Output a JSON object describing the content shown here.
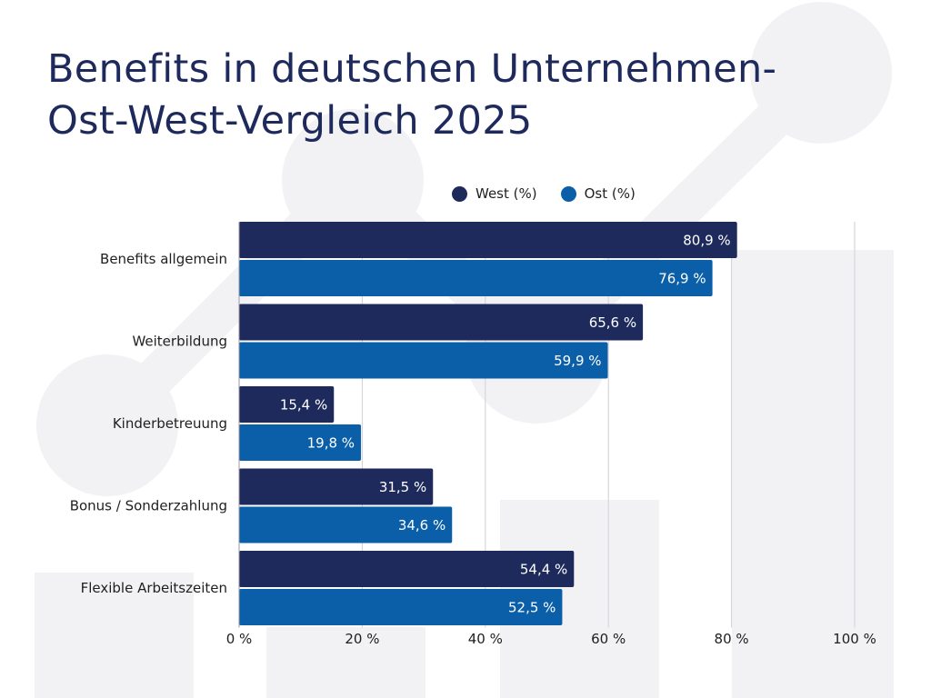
{
  "title_line1": "Benefits in deutschen Unternehmen-",
  "title_line2": "Ost-West-Vergleich 2025",
  "colors": {
    "west": "#1f2a5c",
    "ost": "#0a5fa8",
    "grid": "#cfcfd6",
    "background_shapes": "#f2f2f5"
  },
  "chart_data": {
    "type": "bar",
    "orientation": "horizontal",
    "categories": [
      "Benefits allgemein",
      "Weiterbildung",
      "Kinderbetreuung",
      "Bonus / Sonderzahlung",
      "Flexible Arbeitszeiten"
    ],
    "series": [
      {
        "name": "West (%)",
        "values": [
          80.9,
          65.6,
          15.4,
          31.5,
          54.4
        ],
        "labels": [
          "80,9 %",
          "65,6 %",
          "15,4 %",
          "31,5 %",
          "54,4 %"
        ]
      },
      {
        "name": "Ost (%)",
        "values": [
          76.9,
          59.9,
          19.8,
          34.6,
          52.5
        ],
        "labels": [
          "76,9 %",
          "59,9 %",
          "19,8 %",
          "34,6 %",
          "52,5 %"
        ]
      }
    ],
    "xlim": [
      0,
      100
    ],
    "xticks": [
      0,
      20,
      40,
      60,
      80,
      100
    ],
    "xtick_labels": [
      "0 %",
      "20 %",
      "40 %",
      "60 %",
      "80 %",
      "100 %"
    ],
    "grid": true,
    "legend_position": "top"
  }
}
